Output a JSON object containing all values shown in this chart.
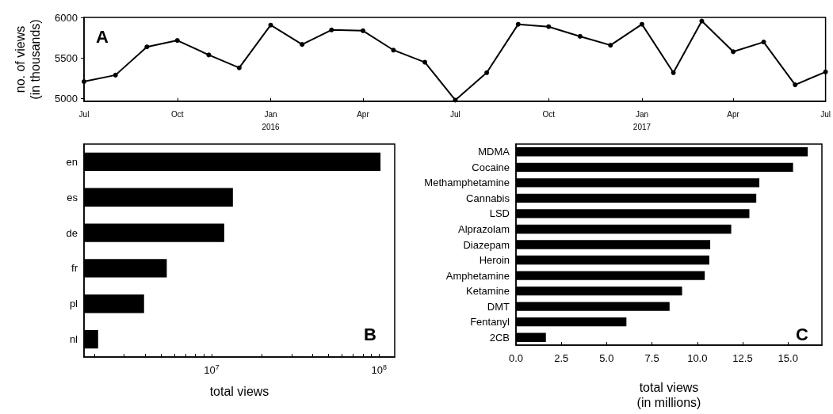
{
  "chart_data": [
    {
      "type": "line",
      "ylabel": "no. of views\n(in thousands)",
      "annotations": [
        "A"
      ],
      "marker": "circle",
      "line_style": "solid",
      "x": [
        "2015-07",
        "2015-08",
        "2015-09",
        "2015-10",
        "2015-11",
        "2015-12",
        "2016-01",
        "2016-02",
        "2016-03",
        "2016-04",
        "2016-05",
        "2016-06",
        "2016-07",
        "2016-08",
        "2016-09",
        "2016-10",
        "2016-11",
        "2016-12",
        "2017-01",
        "2017-02",
        "2017-03",
        "2017-04",
        "2017-05",
        "2017-06",
        "2017-07"
      ],
      "series": [
        {
          "color": "#000000",
          "values": [
            5210,
            5290,
            5640,
            5720,
            5540,
            5380,
            5910,
            5670,
            5850,
            5840,
            5600,
            5450,
            4980,
            5320,
            5920,
            5890,
            5770,
            5660,
            5920,
            5320,
            5960,
            5580,
            5700,
            5170,
            5330
          ]
        }
      ],
      "xlim": [
        "2015-07",
        "2017-07"
      ],
      "xticks": [
        {
          "value": "2015-07",
          "label": "Jul"
        },
        {
          "value": "2015-10",
          "label": "Oct"
        },
        {
          "value": "2016-01",
          "label": "Jan\n2016"
        },
        {
          "value": "2016-04",
          "label": "Apr"
        },
        {
          "value": "2016-07",
          "label": "Jul"
        },
        {
          "value": "2016-10",
          "label": "Oct"
        },
        {
          "value": "2017-01",
          "label": "Jan\n2017"
        },
        {
          "value": "2017-04",
          "label": "Apr"
        },
        {
          "value": "2017-07",
          "label": "Jul"
        }
      ],
      "ylim": [
        4965,
        6005
      ],
      "yticks": [
        5000,
        5500,
        6000
      ]
    },
    {
      "type": "bar",
      "orientation": "horizontal",
      "log": "x",
      "xlabel": "total views",
      "annotations": [
        "B"
      ],
      "categories": [
        "en",
        "es",
        "de",
        "fr",
        "pl",
        "nl"
      ],
      "series": [
        {
          "color": "#000000",
          "values": [
            102000000,
            13400000,
            11900000,
            5400000,
            3950000,
            2100000
          ]
        }
      ],
      "xlim": [
        1730000,
        124000000
      ],
      "xticks": [
        {
          "value": 2000000,
          "label": null
        },
        {
          "value": 3000000,
          "label": null
        },
        {
          "value": 4000000,
          "label": null
        },
        {
          "value": 5000000,
          "label": null
        },
        {
          "value": 6000000,
          "label": null
        },
        {
          "value": 7000000,
          "label": null
        },
        {
          "value": 8000000,
          "label": null
        },
        {
          "value": 9000000,
          "label": null
        },
        {
          "value": 10000000,
          "label": "10$^{7}$"
        },
        {
          "value": 20000000,
          "label": null
        },
        {
          "value": 30000000,
          "label": null
        },
        {
          "value": 40000000,
          "label": null
        },
        {
          "value": 50000000,
          "label": null
        },
        {
          "value": 60000000,
          "label": null
        },
        {
          "value": 70000000,
          "label": null
        },
        {
          "value": 80000000,
          "label": null
        },
        {
          "value": 90000000,
          "label": null
        },
        {
          "value": 100000000,
          "label": "10$^{8}$"
        }
      ]
    },
    {
      "type": "bar",
      "orientation": "horizontal",
      "xlabel": "total views\n(in millions)",
      "annotations": [
        "C"
      ],
      "categories": [
        "MDMA",
        "Cocaine",
        "Methamphetamine",
        "Cannabis",
        "LSD",
        "Alprazolam",
        "Diazepam",
        "Heroin",
        "Amphetamine",
        "Ketamine",
        "DMT",
        "Fentanyl",
        "2CB"
      ],
      "series": [
        {
          "color": "#000000",
          "values": [
            16.09,
            15.28,
            13.42,
            13.25,
            12.87,
            11.87,
            10.71,
            10.66,
            10.41,
            9.16,
            8.47,
            6.09,
            1.65
          ]
        }
      ],
      "xlim": [
        0,
        16.87
      ],
      "xticks": [
        {
          "value": 0,
          "label": "0.0"
        },
        {
          "value": 2.5,
          "label": "2.5"
        },
        {
          "value": 5,
          "label": "5.0"
        },
        {
          "value": 7.5,
          "label": "7.5"
        },
        {
          "value": 10,
          "label": "10.0"
        },
        {
          "value": 12.5,
          "label": "12.5"
        },
        {
          "value": 15,
          "label": "15.0"
        }
      ]
    }
  ]
}
